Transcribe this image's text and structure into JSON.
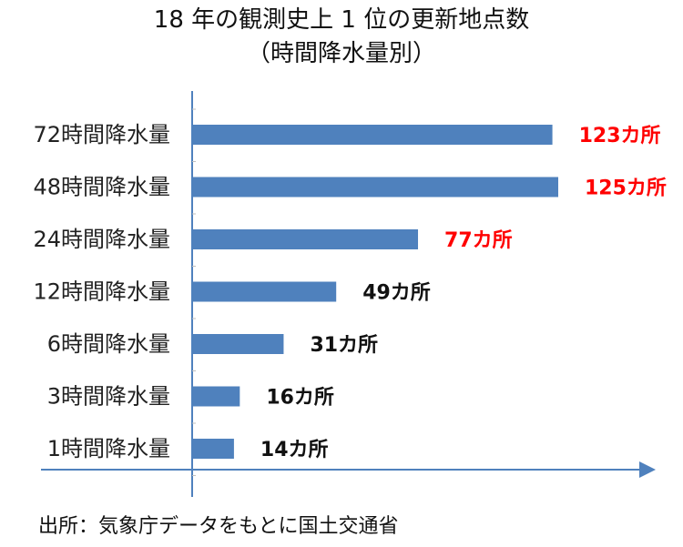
{
  "title": "18 年の観測史上 1 位の更新地点数",
  "subtitle": "（時間降水量別）",
  "source": "出所：気象庁データをもとに国土交通省",
  "colors": {
    "bar": "#4f81bd",
    "axis": "#4f81bd",
    "highlight": "#ff0000",
    "normal": "#111111"
  },
  "chart_data": {
    "type": "bar",
    "orientation": "horizontal",
    "categories": [
      "72時間降水量",
      "48時間降水量",
      "24時間降水量",
      "12時間降水量",
      "6時間降水量",
      "3時間降水量",
      "1時間降水量"
    ],
    "values": [
      123,
      125,
      77,
      49,
      31,
      16,
      14
    ],
    "data_labels": [
      "123カ所",
      "125カ所",
      "77カ所",
      "49カ所",
      "31カ所",
      "16カ所",
      "14カ所"
    ],
    "label_highlight": [
      true,
      true,
      true,
      false,
      false,
      false,
      false
    ],
    "xlim": [
      0,
      150
    ],
    "grid": false,
    "legend": "none"
  }
}
